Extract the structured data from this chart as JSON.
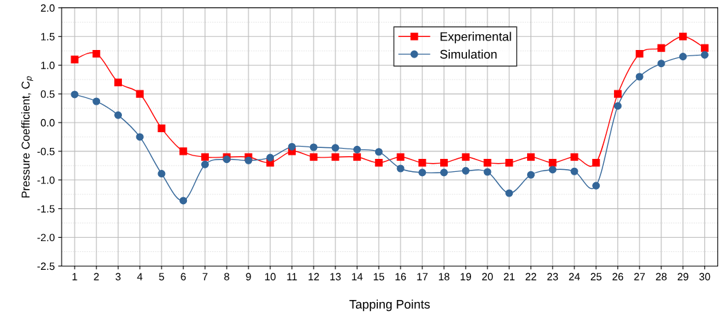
{
  "chart_data": {
    "type": "line",
    "xlabel": "Tapping Points",
    "ylabel": "Pressure Coefficient, C$_{p}$",
    "categories": [
      "1",
      "2",
      "3",
      "4",
      "5",
      "6",
      "7",
      "8",
      "9",
      "10",
      "11",
      "12",
      "13",
      "14",
      "15",
      "16",
      "17",
      "18",
      "19",
      "20",
      "21",
      "22",
      "23",
      "24",
      "25",
      "26",
      "27",
      "28",
      "29",
      "30"
    ],
    "series": [
      {
        "name": "Experimental",
        "color": "#ff0000",
        "marker": "square",
        "values": [
          1.1,
          1.2,
          0.7,
          0.5,
          -0.1,
          -0.5,
          -0.6,
          -0.6,
          -0.6,
          -0.7,
          -0.5,
          -0.6,
          -0.6,
          -0.6,
          -0.7,
          -0.6,
          -0.7,
          -0.7,
          -0.6,
          -0.7,
          -0.7,
          -0.6,
          -0.7,
          -0.6,
          -0.7,
          0.5,
          1.2,
          1.3,
          1.5,
          1.3
        ]
      },
      {
        "name": "Simulation",
        "color": "#336699",
        "marker": "circle",
        "values": [
          0.49,
          0.37,
          0.13,
          -0.25,
          -0.89,
          -1.36,
          -0.73,
          -0.64,
          -0.66,
          -0.61,
          -0.42,
          -0.43,
          -0.44,
          -0.47,
          -0.51,
          -0.8,
          -0.87,
          -0.87,
          -0.84,
          -0.86,
          -1.23,
          -0.91,
          -0.82,
          -0.85,
          -1.1,
          0.29,
          0.8,
          1.03,
          1.15,
          1.18
        ]
      }
    ],
    "ylim": [
      -2.5,
      2.0
    ],
    "yticks": [
      -2.5,
      {
        "value": -2,
        "label": "-2.0"
      },
      -1.5,
      {
        "value": -1,
        "label": "-1.0"
      },
      -0.5,
      {
        "value": 0,
        "label": "0.0"
      },
      0.5,
      {
        "value": 1,
        "label": "1.0"
      },
      1.5,
      {
        "value": 2,
        "label": "2.0"
      }
    ],
    "grid": true,
    "legend": "top center"
  }
}
